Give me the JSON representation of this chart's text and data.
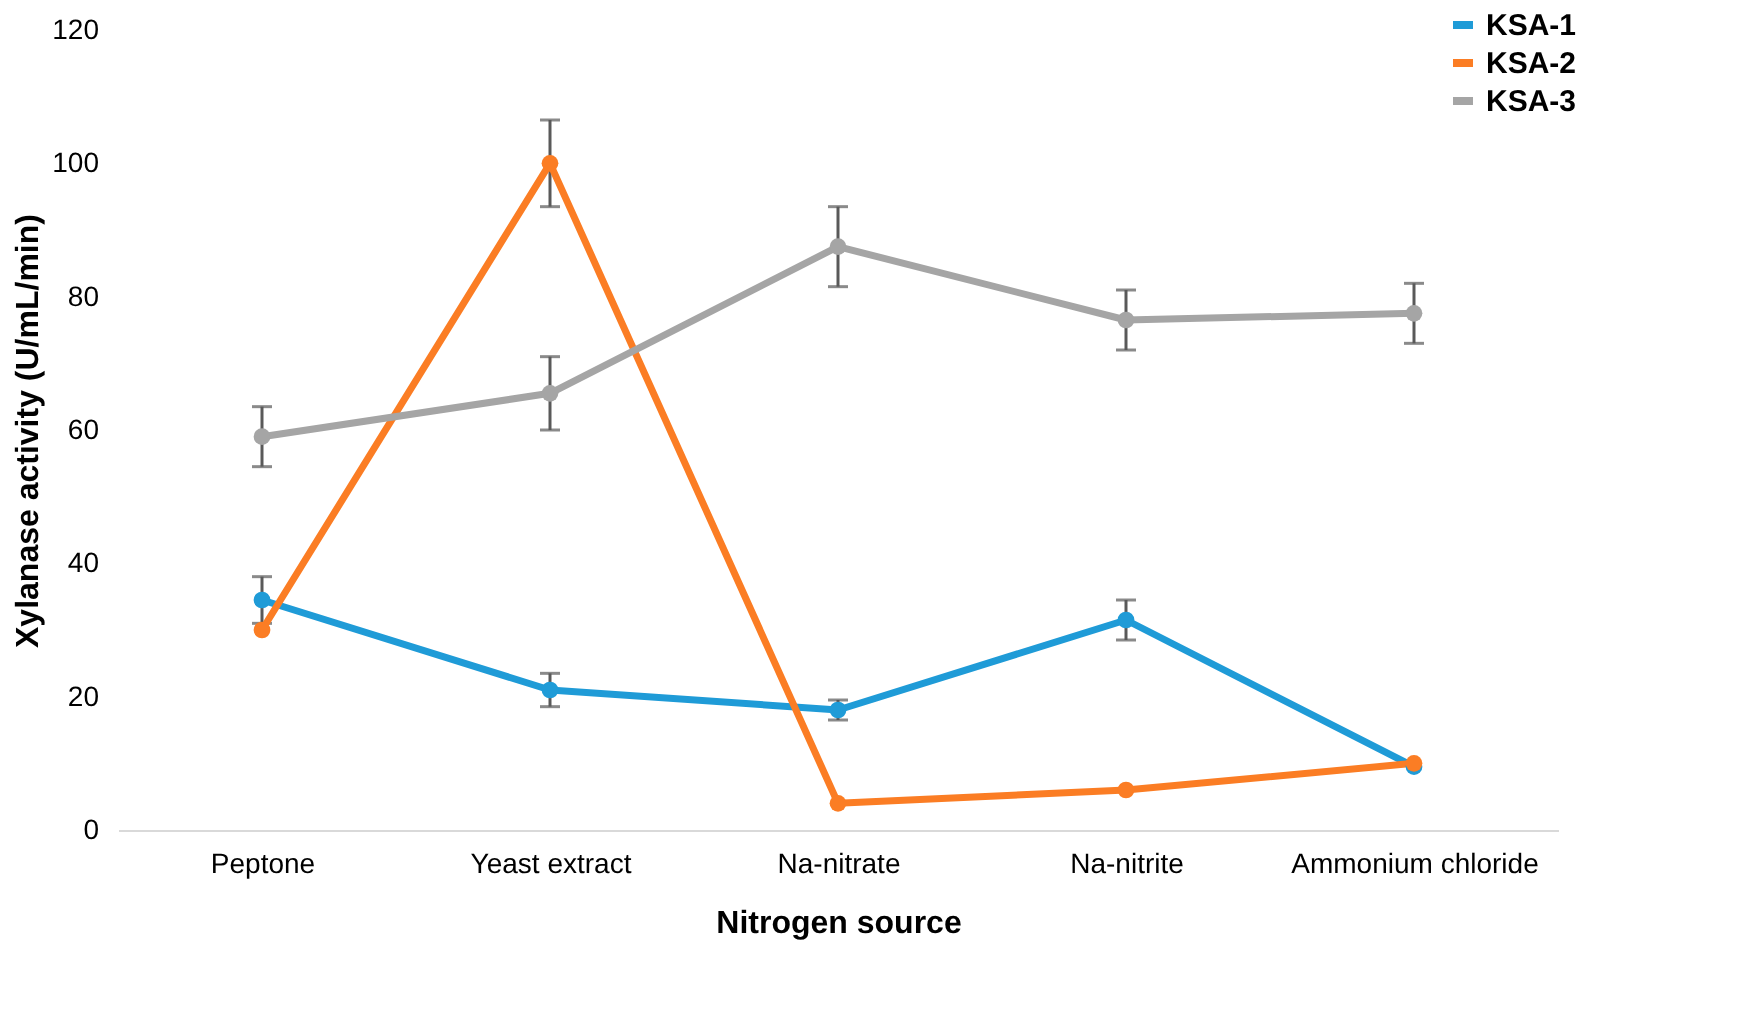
{
  "chart_data": {
    "type": "line",
    "xlabel": "Nitrogen source",
    "ylabel": "Xylanase activity (U/mL/min)",
    "categories": [
      "Peptone",
      "Yeast extract",
      "Na-nitrate",
      "Na-nitrite",
      "Ammonium chloride"
    ],
    "series": [
      {
        "name": "KSA-1",
        "color": "#1f9bd7",
        "values": [
          34.5,
          21,
          18,
          31.5,
          9.5
        ],
        "errors": [
          3.5,
          2.5,
          1.5,
          3,
          null
        ]
      },
      {
        "name": "KSA-2",
        "color": "#fb7d24",
        "values": [
          30,
          100,
          4,
          6,
          10
        ],
        "errors": [
          null,
          6.5,
          null,
          null,
          null
        ]
      },
      {
        "name": "KSA-3",
        "color": "#a5a5a5",
        "values": [
          59,
          65.5,
          87.5,
          76.5,
          77.5
        ],
        "errors": [
          4.5,
          5.5,
          6,
          4.5,
          4.5
        ]
      }
    ],
    "ylim": [
      0,
      120
    ],
    "yticks": [
      0,
      20,
      40,
      60,
      80,
      100,
      120
    ],
    "grid": false,
    "legend": "top right",
    "marker": "circle",
    "line_style": "solid"
  }
}
